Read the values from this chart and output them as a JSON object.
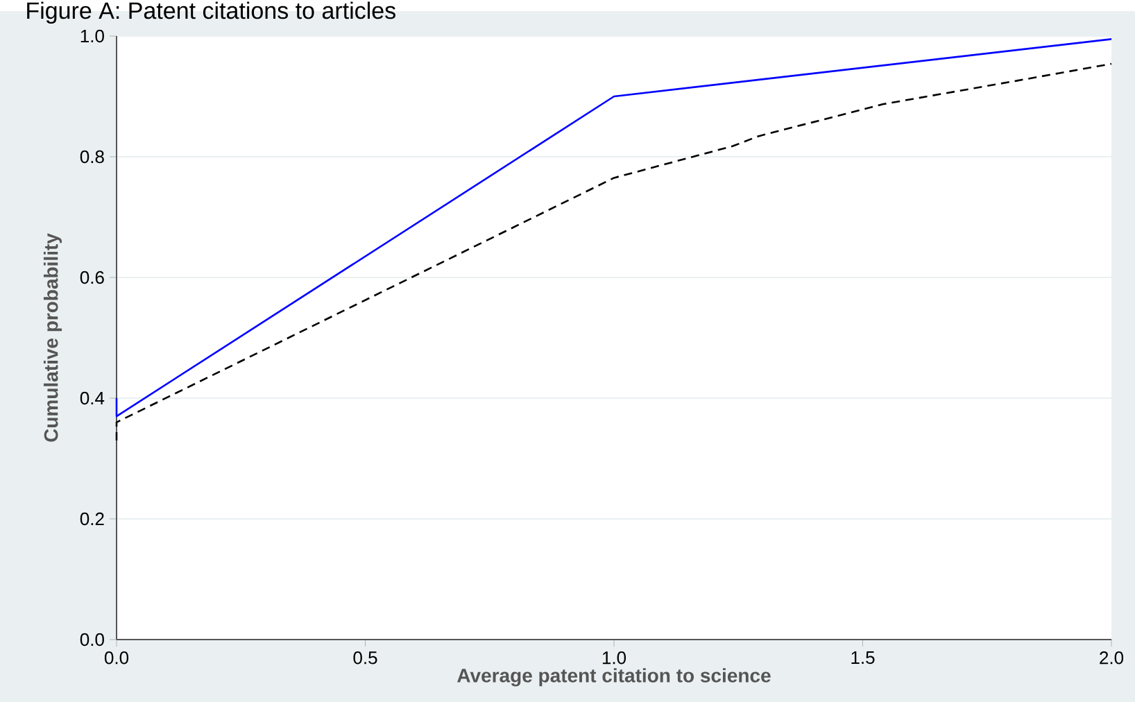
{
  "chart_data": {
    "type": "line",
    "title": "Figure A: Patent citations to articles",
    "xlabel": "Average patent citation to science",
    "ylabel": "Cumulative probability",
    "series": [
      {
        "color": "#0000ff",
        "line_style": "solid",
        "x": [
          0,
          0,
          1.0,
          2.0
        ],
        "values": [
          0.4,
          0.37,
          0.9,
          0.995
        ]
      },
      {
        "color": "#000000",
        "line_style": "dashed",
        "x": [
          0,
          0,
          1.0,
          1.24,
          1.29,
          1.54,
          1.81,
          2.0
        ],
        "values": [
          0.33,
          0.36,
          0.765,
          0.818,
          0.834,
          0.887,
          0.926,
          0.954
        ]
      }
    ],
    "xlim": [
      0,
      2
    ],
    "ylim": [
      0,
      1
    ],
    "xticks": [
      {
        "value": 0,
        "label": "0.0"
      },
      0.5,
      {
        "value": 1,
        "label": "1.0"
      },
      1.5,
      {
        "value": 2,
        "label": "2.0"
      }
    ],
    "yticks": [
      {
        "value": 0,
        "label": "0.0"
      },
      0.2,
      0.4,
      0.6,
      0.8,
      {
        "value": 1,
        "label": "1.0"
      }
    ],
    "grid": "y",
    "marker": "none"
  }
}
